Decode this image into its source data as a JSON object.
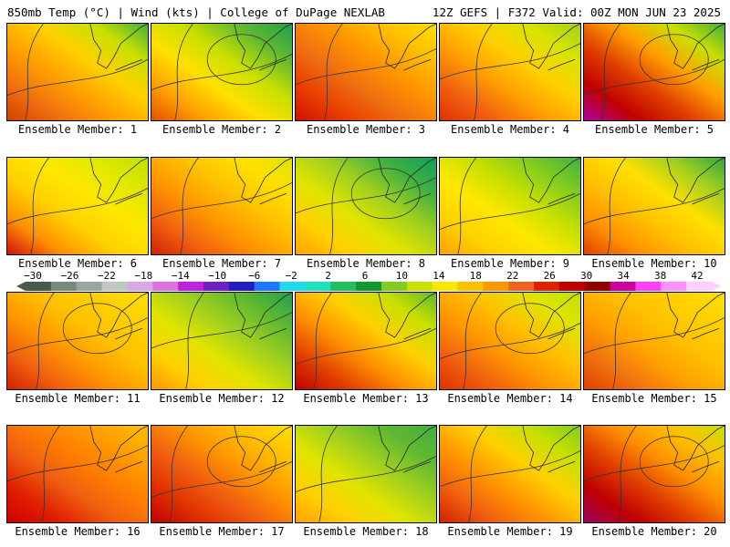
{
  "header": {
    "left": "850mb Temp (°C) | Wind (kts) | College of DuPage NEXLAB",
    "right": "12Z GEFS | F372 Valid: 00Z MON JUN 23 2025"
  },
  "colorbar": {
    "tick_labels": [
      "−30",
      "−26",
      "−22",
      "−18",
      "−14",
      "−10",
      "−6",
      "−2",
      "2",
      "6",
      "10",
      "14",
      "18",
      "22",
      "26",
      "30",
      "34",
      "38",
      "42"
    ],
    "colors": [
      "#4a5a4a",
      "#7a8a7a",
      "#99a6a0",
      "#c0c8c4",
      "#d8a8e8",
      "#e070e0",
      "#c020e0",
      "#7020c0",
      "#2020c0",
      "#1e78ff",
      "#20d8f0",
      "#20e0c0",
      "#20c060",
      "#109830",
      "#80cc20",
      "#c8e000",
      "#ffe600",
      "#ffc000",
      "#ff9600",
      "#f06020",
      "#e02000",
      "#c00000",
      "#900000",
      "#d000a0",
      "#ff40ff",
      "#ff90ff",
      "#ffd0ff"
    ]
  },
  "panels": [
    {
      "caption": "Ensemble Member: 1",
      "colors": [
        "#d04000",
        "#f07010",
        "#ffa000",
        "#ffd000",
        "#c8e000",
        "#40b040"
      ]
    },
    {
      "caption": "Ensemble Member: 2",
      "colors": [
        "#e05000",
        "#ffa000",
        "#ffe000",
        "#c8e000",
        "#60b830",
        "#20a050"
      ]
    },
    {
      "caption": "Ensemble Member: 3",
      "colors": [
        "#d01000",
        "#e84000",
        "#f07010",
        "#ff9600",
        "#ffc000",
        "#ffe000"
      ]
    },
    {
      "caption": "Ensemble Member: 4",
      "colors": [
        "#e03000",
        "#f06010",
        "#ffa000",
        "#ffd000",
        "#d8e400",
        "#a0d020"
      ]
    },
    {
      "caption": "Ensemble Member: 5",
      "colors": [
        "#b000a0",
        "#c00000",
        "#e04000",
        "#ffa000",
        "#c8e000",
        "#40b040"
      ]
    },
    {
      "caption": "Ensemble Member: 6",
      "colors": [
        "#d01010",
        "#ff9000",
        "#ffd000",
        "#ffe800",
        "#e0e800",
        "#c0e000"
      ]
    },
    {
      "caption": "Ensemble Member: 7",
      "colors": [
        "#d02000",
        "#f06010",
        "#ff9600",
        "#ffc000",
        "#ffe000",
        "#e0e400"
      ]
    },
    {
      "caption": "Ensemble Member: 8",
      "colors": [
        "#ffa000",
        "#ffd000",
        "#e0e400",
        "#a0d020",
        "#40b040",
        "#10a060"
      ]
    },
    {
      "caption": "Ensemble Member: 9",
      "colors": [
        "#ffa000",
        "#ffd000",
        "#ffe800",
        "#c8e000",
        "#80cc20",
        "#40b040"
      ]
    },
    {
      "caption": "Ensemble Member: 10",
      "colors": [
        "#e04000",
        "#ff9000",
        "#ffc000",
        "#ffe000",
        "#a0d020",
        "#30a840"
      ]
    },
    {
      "caption": "Ensemble Member: 11",
      "colors": [
        "#d02000",
        "#f06010",
        "#ff9600",
        "#ffc000",
        "#ffd000",
        "#ffe000"
      ]
    },
    {
      "caption": "Ensemble Member: 12",
      "colors": [
        "#ff9600",
        "#ffd000",
        "#e0e400",
        "#a0d020",
        "#60b830",
        "#20a050"
      ]
    },
    {
      "caption": "Ensemble Member: 13",
      "colors": [
        "#c00000",
        "#e04000",
        "#ff9000",
        "#ffd000",
        "#c8e000",
        "#60b830"
      ]
    },
    {
      "caption": "Ensemble Member: 14",
      "colors": [
        "#e03000",
        "#f06010",
        "#ff9600",
        "#ffc000",
        "#e0e400",
        "#c0e000"
      ]
    },
    {
      "caption": "Ensemble Member: 15",
      "colors": [
        "#e04000",
        "#f07010",
        "#ffa000",
        "#ffc000",
        "#ffd000",
        "#ffe000"
      ]
    },
    {
      "caption": "Ensemble Member: 16",
      "colors": [
        "#d00000",
        "#e02000",
        "#f06010",
        "#ff8000",
        "#ffa000",
        "#ffc000"
      ]
    },
    {
      "caption": "Ensemble Member: 17",
      "colors": [
        "#c00000",
        "#e03000",
        "#f06010",
        "#ff9600",
        "#ffc000",
        "#ffe000"
      ]
    },
    {
      "caption": "Ensemble Member: 18",
      "colors": [
        "#ffa000",
        "#ffd000",
        "#e0e400",
        "#a0d020",
        "#60b830",
        "#40b040"
      ]
    },
    {
      "caption": "Ensemble Member: 19",
      "colors": [
        "#d02000",
        "#f06010",
        "#ff9600",
        "#ffd000",
        "#c8e000",
        "#80cc20"
      ]
    },
    {
      "caption": "Ensemble Member: 20",
      "colors": [
        "#a00060",
        "#c00000",
        "#e04000",
        "#ff9000",
        "#ffc000",
        "#c8e000"
      ]
    }
  ]
}
